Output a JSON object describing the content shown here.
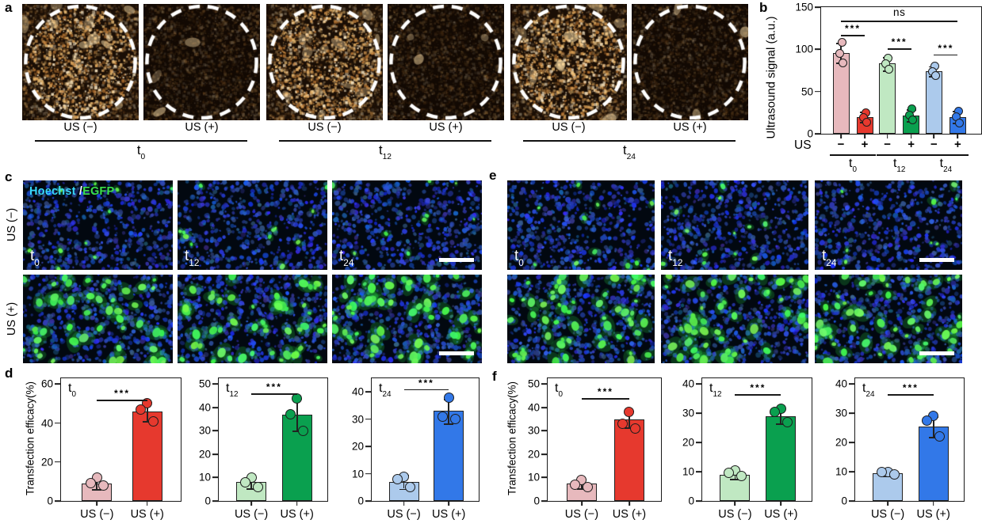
{
  "colors": {
    "t0_light": "#e7b9bd",
    "t0_dark": "#e6392e",
    "t12_light": "#c0e8c2",
    "t12_dark": "#0aa04f",
    "t24_light": "#accaec",
    "t24_dark": "#3278e8",
    "outline": "#222222",
    "hoechst_label_color": "#38d8f8",
    "egfp_label_color": "#3ae04a"
  },
  "panels": {
    "a": {
      "label": "a",
      "groups": [
        {
          "time": {
            "base": "t",
            "sub": "0"
          },
          "conditions": [
            "US (−)",
            "US (+)"
          ]
        },
        {
          "time": {
            "base": "t",
            "sub": "12"
          },
          "conditions": [
            "US (−)",
            "US (+)"
          ]
        },
        {
          "time": {
            "base": "t",
            "sub": "24"
          },
          "conditions": [
            "US (−)",
            "US (+)"
          ]
        }
      ]
    },
    "b": {
      "label": "b"
    },
    "c": {
      "label": "c",
      "stain_label": {
        "hoechst": "Hoechst",
        "separator": " /",
        "egfp": "EGFP"
      },
      "row_labels": [
        "US (−)",
        "US (+)"
      ],
      "times": [
        {
          "base": "t",
          "sub": "0"
        },
        {
          "base": "t",
          "sub": "12"
        },
        {
          "base": "t",
          "sub": "24"
        }
      ]
    },
    "d": {
      "label": "d"
    },
    "e": {
      "label": "e",
      "times": [
        {
          "base": "t",
          "sub": "0"
        },
        {
          "base": "t",
          "sub": "12"
        },
        {
          "base": "t",
          "sub": "24"
        }
      ]
    },
    "f": {
      "label": "f"
    }
  },
  "chart_data": [
    {
      "id": "b",
      "type": "bar",
      "layout": "grouped_pairs",
      "title": "",
      "xlabel": "",
      "ylabel": "Ultrasound signal (a.u.)",
      "ylim": [
        0,
        150
      ],
      "yticks": [
        0,
        50,
        100,
        150
      ],
      "grid": false,
      "legend": "none",
      "x_prefix": "US",
      "group_labels": [
        {
          "base": "t",
          "sub": "0"
        },
        {
          "base": "t",
          "sub": "12"
        },
        {
          "base": "t",
          "sub": "24"
        }
      ],
      "bars": [
        {
          "group": "t0",
          "us": "−",
          "value": 96,
          "err": 12,
          "points": [
            108,
            95,
            84
          ],
          "fill": "#e7b9bd"
        },
        {
          "group": "t0",
          "us": "+",
          "value": 20,
          "err": 6,
          "points": [
            25,
            19,
            14
          ],
          "fill": "#e6392e"
        },
        {
          "group": "t12",
          "us": "−",
          "value": 83,
          "err": 8,
          "points": [
            90,
            83,
            76
          ],
          "fill": "#c0e8c2"
        },
        {
          "group": "t12",
          "us": "+",
          "value": 22,
          "err": 7,
          "points": [
            30,
            22,
            16
          ],
          "fill": "#0aa04f"
        },
        {
          "group": "t24",
          "us": "−",
          "value": 74,
          "err": 6,
          "points": [
            80,
            74,
            69
          ],
          "fill": "#accaec"
        },
        {
          "group": "t24",
          "us": "+",
          "value": 20,
          "err": 7,
          "points": [
            27,
            20,
            13
          ],
          "fill": "#3278e8"
        }
      ],
      "significance": [
        {
          "bars": [
            0,
            1
          ],
          "y": 117,
          "label": "***"
        },
        {
          "bars": [
            2,
            3
          ],
          "y": 101,
          "label": "***"
        },
        {
          "bars": [
            4,
            5
          ],
          "y": 94,
          "label": "***"
        },
        {
          "bars": [
            0,
            5
          ],
          "y": 134,
          "label": "ns"
        }
      ]
    },
    {
      "id": "d-t0",
      "type": "bar",
      "layout": "two",
      "title": "",
      "xlabel": "",
      "ylabel": "Transfection efficacy(%)",
      "time": {
        "base": "t",
        "sub": "0"
      },
      "ylim": [
        0,
        63
      ],
      "yticks": [
        0,
        20,
        40,
        60
      ],
      "grid": false,
      "legend": "none",
      "categories": [
        "US (−)",
        "US (+)"
      ],
      "bars": [
        {
          "category": "US (−)",
          "value": 9,
          "err": 3,
          "points": [
            12,
            9,
            8
          ],
          "fill": "#e7b9bd"
        },
        {
          "category": "US (+)",
          "value": 46,
          "err": 5,
          "points": [
            50,
            47,
            41
          ],
          "fill": "#e6392e"
        }
      ],
      "significance": [
        {
          "bars": [
            0,
            1
          ],
          "y": 52,
          "label": "***"
        }
      ]
    },
    {
      "id": "d-t12",
      "type": "bar",
      "layout": "two",
      "title": "",
      "xlabel": "",
      "ylabel": "",
      "time": {
        "base": "t",
        "sub": "12"
      },
      "ylim": [
        0,
        52.5
      ],
      "yticks": [
        0,
        10,
        20,
        30,
        40,
        50
      ],
      "grid": false,
      "legend": "none",
      "categories": [
        "US (−)",
        "US (+)"
      ],
      "bars": [
        {
          "category": "US (−)",
          "value": 8,
          "err": 2.5,
          "points": [
            10,
            8,
            6
          ],
          "fill": "#c0e8c2"
        },
        {
          "category": "US (+)",
          "value": 37,
          "err": 7,
          "points": [
            44,
            37,
            30
          ],
          "fill": "#0aa04f"
        }
      ],
      "significance": [
        {
          "bars": [
            0,
            1
          ],
          "y": 46,
          "label": "***"
        }
      ]
    },
    {
      "id": "d-t24",
      "type": "bar",
      "layout": "two",
      "title": "",
      "xlabel": "",
      "ylabel": "",
      "time": {
        "base": "t",
        "sub": "24"
      },
      "ylim": [
        0,
        45
      ],
      "yticks": [
        0,
        10,
        20,
        30,
        40
      ],
      "grid": false,
      "legend": "none",
      "categories": [
        "US (−)",
        "US (+)"
      ],
      "bars": [
        {
          "category": "US (−)",
          "value": 7,
          "err": 2.5,
          "points": [
            9,
            8,
            5
          ],
          "fill": "#accaec"
        },
        {
          "category": "US (+)",
          "value": 33,
          "err": 4.5,
          "points": [
            38,
            31,
            30
          ],
          "fill": "#3278e8"
        }
      ],
      "significance": [
        {
          "bars": [
            0,
            1
          ],
          "y": 41,
          "label": "***"
        }
      ]
    },
    {
      "id": "f-t0",
      "type": "bar",
      "layout": "two",
      "title": "",
      "xlabel": "",
      "ylabel": "Transfection efficacy(%)",
      "time": {
        "base": "t",
        "sub": "0"
      },
      "ylim": [
        0,
        52.5
      ],
      "yticks": [
        0,
        10,
        20,
        30,
        40,
        50
      ],
      "grid": false,
      "legend": "none",
      "categories": [
        "US (−)",
        "US (+)"
      ],
      "bars": [
        {
          "category": "US (−)",
          "value": 7.5,
          "err": 2,
          "points": [
            9,
            7,
            6
          ],
          "fill": "#e7b9bd"
        },
        {
          "category": "US (+)",
          "value": 35,
          "err": 3.5,
          "points": [
            38,
            33,
            31
          ],
          "fill": "#e6392e"
        }
      ],
      "significance": [
        {
          "bars": [
            0,
            1
          ],
          "y": 44,
          "label": "***"
        }
      ]
    },
    {
      "id": "f-t12",
      "type": "bar",
      "layout": "two",
      "title": "",
      "xlabel": "",
      "ylabel": "",
      "time": {
        "base": "t",
        "sub": "12"
      },
      "ylim": [
        0,
        42
      ],
      "yticks": [
        0,
        10,
        20,
        30,
        40
      ],
      "grid": false,
      "legend": "none",
      "categories": [
        "US (−)",
        "US (+)"
      ],
      "bars": [
        {
          "category": "US (−)",
          "value": 9,
          "err": 1.5,
          "points": [
            10.5,
            9.5,
            8.5
          ],
          "fill": "#c0e8c2"
        },
        {
          "category": "US (+)",
          "value": 29,
          "err": 2.5,
          "points": [
            31.5,
            30.5,
            27
          ],
          "fill": "#0aa04f"
        }
      ],
      "significance": [
        {
          "bars": [
            0,
            1
          ],
          "y": 36.5,
          "label": "***"
        }
      ]
    },
    {
      "id": "f-t24",
      "type": "bar",
      "layout": "two",
      "title": "",
      "xlabel": "",
      "ylabel": "",
      "time": {
        "base": "t",
        "sub": "24"
      },
      "ylim": [
        0,
        42
      ],
      "yticks": [
        0,
        10,
        20,
        30,
        40
      ],
      "grid": false,
      "legend": "none",
      "categories": [
        "US (−)",
        "US (+)"
      ],
      "bars": [
        {
          "category": "US (−)",
          "value": 9.5,
          "err": 1,
          "points": [
            10,
            9.8,
            9
          ],
          "fill": "#accaec"
        },
        {
          "category": "US (+)",
          "value": 25.5,
          "err": 3.5,
          "points": [
            29,
            27.5,
            22
          ],
          "fill": "#3278e8"
        }
      ],
      "significance": [
        {
          "bars": [
            0,
            1
          ],
          "y": 36.5,
          "label": "***"
        }
      ]
    }
  ]
}
